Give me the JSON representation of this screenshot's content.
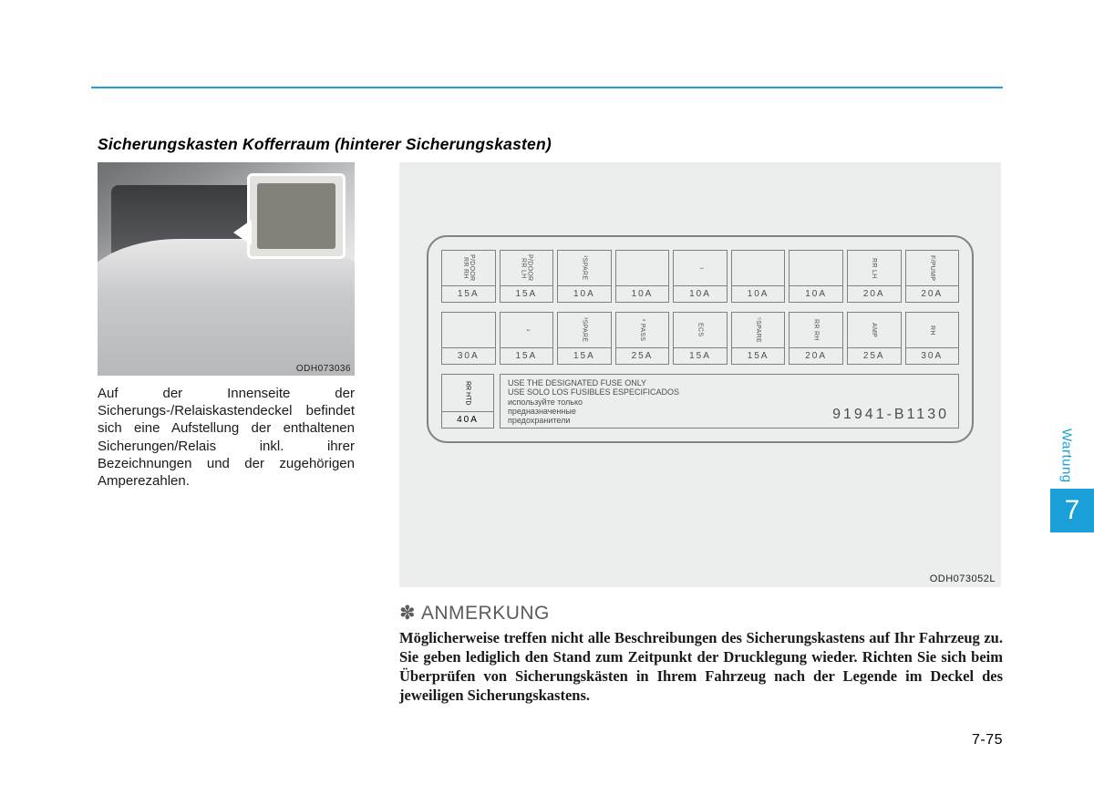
{
  "colors": {
    "accent": "#1a9fd8",
    "panel_bg": "#eceded",
    "line": "#7f8182",
    "text": "#1a1a1a",
    "muted": "#5a5c5d"
  },
  "header_rule": true,
  "section_title": "Sicherungskasten Kofferraum (hinterer Sicherungskasten)",
  "trunk_photo": {
    "code": "ODH073036"
  },
  "trunk_caption": "Auf der Innenseite der Sicherungs-/Relaiskastendeckel befindet sich eine Aufstellung der enthaltenen Sicherungen/Relais inkl. ihrer Bezeichnungen und der zugehörigen Amperezahlen.",
  "fuse_panel": {
    "code": "ODH073052L",
    "row1": [
      {
        "label": "P/DOOR RR RH",
        "amp": "15A"
      },
      {
        "label": "P/DOOR RR LH",
        "amp": "15A"
      },
      {
        "label": "¹SPARE",
        "amp": "10A"
      },
      {
        "label": "",
        "amp": "10A"
      },
      {
        "label": "¹",
        "amp": "10A"
      },
      {
        "label": "",
        "amp": "10A"
      },
      {
        "label": "",
        "amp": "10A"
      },
      {
        "label": "RR LH",
        "amp": "20A"
      },
      {
        "label": "F/PUMP",
        "amp": "20A"
      }
    ],
    "row2": [
      {
        "label": "",
        "amp": "30A"
      },
      {
        "label": "²",
        "amp": "15A"
      },
      {
        "label": "³SPARE",
        "amp": "15A"
      },
      {
        "label": "² PASS",
        "amp": "25A"
      },
      {
        "label": "ECS",
        "amp": "15A"
      },
      {
        "label": "⁵SPARE",
        "amp": "15A"
      },
      {
        "label": "RR RH",
        "amp": "20A"
      },
      {
        "label": "AMP",
        "amp": "25A"
      },
      {
        "label": "RH",
        "amp": "30A"
      }
    ],
    "big_fuse": {
      "label": "RR HTD",
      "amp": "40A"
    },
    "warning_lines": [
      "USE THE DESIGNATED FUSE ONLY",
      "USE SOLO LOS FUSIBLES ESPECIFICADOS",
      "используйте только",
      "предназначенные",
      "предохранители"
    ],
    "part_no": "91941-B1130"
  },
  "note": {
    "heading": "ANMERKUNG",
    "body": "Möglicherweise treffen nicht alle Beschreibungen des Sicherungskastens auf Ihr Fahrzeug zu. Sie geben lediglich den Stand zum Zeitpunkt der Drucklegung wieder. Richten Sie sich beim Überprüfen von Sicherungskästen in Ihrem Fahrzeug nach der Legende im Deckel des jeweiligen Sicherungskastens."
  },
  "side_tab": {
    "label": "Wartung",
    "chapter": "7"
  },
  "page_number": "7-75"
}
